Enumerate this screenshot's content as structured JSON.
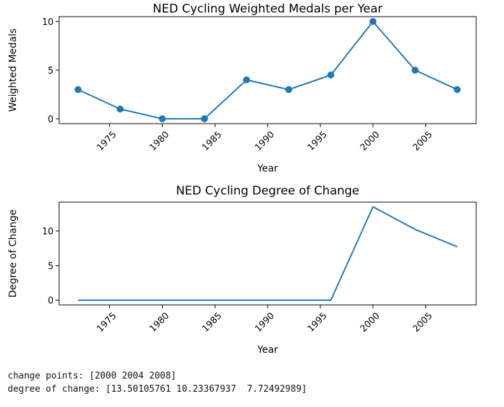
{
  "chart_data": [
    {
      "type": "line",
      "title": "NED Cycling Weighted Medals per Year",
      "xlabel": "Year",
      "ylabel": "Weighted Medals",
      "markers": true,
      "color": "#1f77b4",
      "x": [
        1972,
        1976,
        1980,
        1984,
        1988,
        1992,
        1996,
        2000,
        2004,
        2008
      ],
      "values": [
        3,
        1,
        0,
        0,
        4,
        3,
        4.5,
        10,
        5,
        3
      ],
      "xlim": [
        1970.2,
        2009.8
      ],
      "ylim": [
        -0.5,
        10.5
      ],
      "xticks": [
        1975,
        1980,
        1985,
        1990,
        1995,
        2000,
        2005
      ],
      "yticks": [
        0,
        5,
        10
      ],
      "grid": false
    },
    {
      "type": "line",
      "title": "NED Cycling Degree of Change",
      "xlabel": "Year",
      "ylabel": "Degree of Change",
      "markers": false,
      "color": "#1f77b4",
      "x": [
        1972,
        1976,
        1980,
        1984,
        1988,
        1992,
        1996,
        2000,
        2004,
        2008
      ],
      "values": [
        0,
        0,
        0,
        0,
        0,
        0,
        0,
        13.50105761,
        10.23367937,
        7.72492989
      ],
      "xlim": [
        1970.2,
        2009.8
      ],
      "ylim": [
        -0.68,
        14.18
      ],
      "xticks": [
        1975,
        1980,
        1985,
        1990,
        1995,
        2000,
        2005
      ],
      "yticks": [
        0,
        5,
        10
      ],
      "grid": false
    }
  ],
  "console": {
    "line1": "change points: [2000 2004 2008]",
    "line2": "degree of change: [13.50105761 10.23367937  7.72492989]"
  }
}
